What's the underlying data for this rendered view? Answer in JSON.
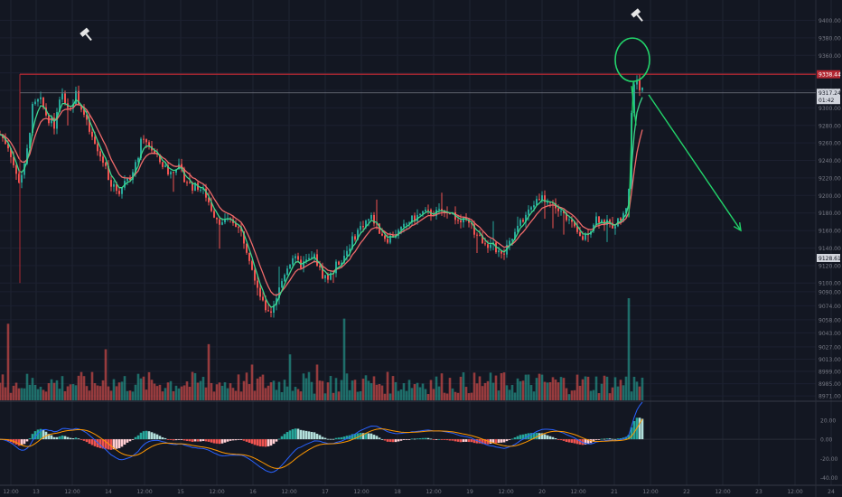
{
  "chart_data": {
    "type": "candlestick",
    "title": "",
    "price_axis": {
      "ylim": [
        8965,
        9415
      ],
      "ticks": [
        "9400.00",
        "9380.00",
        "9360.00",
        "9340.00",
        "9320.00",
        "9300.00",
        "9280.00",
        "9260.00",
        "9240.00",
        "9220.00",
        "9200.00",
        "9180.00",
        "9160.00",
        "9140.00",
        "9120.00",
        "9100.00",
        "9090.00",
        "9074.00",
        "9058.00",
        "9043.00",
        "9027.00",
        "9013.00",
        "8999.00",
        "8985.00",
        "8971.00"
      ],
      "tick_values": [
        9400,
        9380,
        9360,
        9340,
        9320,
        9300,
        9280,
        9260,
        9240,
        9220,
        9200,
        9180,
        9160,
        9140,
        9120,
        9100,
        9090,
        9074,
        9058,
        9043,
        9027,
        9013,
        8999,
        8985,
        8971
      ],
      "tags": [
        {
          "label": "9338.44",
          "value": 9338.44,
          "color": "#b22833"
        },
        {
          "label": "9317.24",
          "value": 9317.24,
          "color": "#d1d4dc"
        },
        {
          "label": "01:42",
          "value": 9309,
          "color": "#d1d4dc"
        },
        {
          "label": "9128.61",
          "value": 9128.61,
          "color": "#d1d4dc"
        }
      ]
    },
    "time_axis": {
      "ticks": [
        "12:00",
        "13",
        "12:00",
        "14",
        "12:00",
        "15",
        "12:00",
        "16",
        "12:00",
        "17",
        "12:00",
        "18",
        "12:00",
        "19",
        "12:00",
        "20",
        "12:00",
        "21",
        "12:00",
        "22",
        "12:00",
        "23",
        "12:00",
        "24"
      ],
      "positions": [
        6,
        20,
        40,
        60,
        80,
        100,
        120,
        140,
        160,
        180,
        200,
        220,
        240,
        260,
        280,
        300,
        320,
        340,
        360,
        380,
        400,
        420,
        440,
        460
      ]
    },
    "x_range": [
      0,
      470
    ],
    "levels": [
      {
        "value": 9338.44,
        "color": "#b22833"
      },
      {
        "value": 9317.24,
        "color": "#787b86"
      }
    ],
    "ohlc_keyframes": [
      [
        0,
        9270
      ],
      [
        5,
        9255
      ],
      [
        10,
        9215
      ],
      [
        14,
        9235
      ],
      [
        18,
        9300
      ],
      [
        22,
        9310
      ],
      [
        26,
        9290
      ],
      [
        30,
        9280
      ],
      [
        34,
        9315
      ],
      [
        38,
        9300
      ],
      [
        42,
        9315
      ],
      [
        46,
        9295
      ],
      [
        50,
        9270
      ],
      [
        54,
        9250
      ],
      [
        58,
        9235
      ],
      [
        62,
        9210
      ],
      [
        66,
        9205
      ],
      [
        70,
        9220
      ],
      [
        74,
        9225
      ],
      [
        78,
        9260
      ],
      [
        82,
        9260
      ],
      [
        86,
        9245
      ],
      [
        90,
        9235
      ],
      [
        94,
        9225
      ],
      [
        98,
        9235
      ],
      [
        102,
        9220
      ],
      [
        106,
        9210
      ],
      [
        110,
        9210
      ],
      [
        114,
        9200
      ],
      [
        118,
        9180
      ],
      [
        122,
        9170
      ],
      [
        126,
        9170
      ],
      [
        130,
        9170
      ],
      [
        134,
        9155
      ],
      [
        138,
        9130
      ],
      [
        142,
        9100
      ],
      [
        146,
        9072
      ],
      [
        150,
        9068
      ],
      [
        154,
        9090
      ],
      [
        158,
        9115
      ],
      [
        162,
        9130
      ],
      [
        166,
        9120
      ],
      [
        170,
        9125
      ],
      [
        174,
        9130
      ],
      [
        178,
        9110
      ],
      [
        182,
        9105
      ],
      [
        186,
        9120
      ],
      [
        190,
        9130
      ],
      [
        194,
        9145
      ],
      [
        198,
        9160
      ],
      [
        202,
        9170
      ],
      [
        206,
        9175
      ],
      [
        210,
        9160
      ],
      [
        214,
        9150
      ],
      [
        218,
        9155
      ],
      [
        222,
        9160
      ],
      [
        226,
        9170
      ],
      [
        230,
        9175
      ],
      [
        234,
        9180
      ],
      [
        238,
        9180
      ],
      [
        242,
        9180
      ],
      [
        246,
        9185
      ],
      [
        250,
        9180
      ],
      [
        254,
        9170
      ],
      [
        258,
        9170
      ],
      [
        262,
        9160
      ],
      [
        266,
        9150
      ],
      [
        270,
        9145
      ],
      [
        274,
        9140
      ],
      [
        278,
        9130
      ],
      [
        282,
        9145
      ],
      [
        286,
        9160
      ],
      [
        290,
        9175
      ],
      [
        294,
        9185
      ],
      [
        298,
        9200
      ],
      [
        302,
        9195
      ],
      [
        306,
        9190
      ],
      [
        310,
        9180
      ],
      [
        314,
        9175
      ],
      [
        318,
        9160
      ],
      [
        322,
        9150
      ],
      [
        326,
        9160
      ],
      [
        330,
        9175
      ],
      [
        334,
        9170
      ],
      [
        338,
        9165
      ],
      [
        342,
        9170
      ],
      [
        346,
        9180
      ],
      [
        348,
        9210
      ],
      [
        350,
        9320
      ],
      [
        352,
        9335
      ],
      [
        354,
        9325
      ],
      [
        356,
        9317
      ]
    ],
    "volume_axis": {
      "ylim": [
        0,
        1
      ]
    },
    "volume_spikes": [
      [
        4,
        0.75
      ],
      [
        58,
        0.5
      ],
      [
        116,
        0.55
      ],
      [
        140,
        0.35
      ],
      [
        160,
        0.45
      ],
      [
        176,
        0.35
      ],
      [
        190,
        0.8
      ],
      [
        348,
        1.0
      ]
    ],
    "macd_axis": {
      "ylim": [
        -45,
        32
      ],
      "ticks": [
        "20.00",
        "0.00",
        "-20.00",
        "-40.00"
      ],
      "tick_values": [
        20,
        0,
        -20,
        -40
      ]
    },
    "annotations": [
      {
        "type": "hammer-icon",
        "x": 47,
        "value": 9386
      },
      {
        "type": "hammer-icon",
        "x": 352,
        "value": 9408
      },
      {
        "type": "circle",
        "x": 350,
        "value": 9355
      },
      {
        "type": "arrow",
        "from": [
          359,
          9315
        ],
        "to": [
          410,
          9160
        ]
      }
    ],
    "colors": {
      "bull": "#26a69a",
      "bear": "#ef5350",
      "ema_fast": "#3dd68c",
      "ema_slow": "#ef6a6a",
      "macd": "#2962ff",
      "signal": "#ff9800",
      "annotation": "#22d36a",
      "resistance": "#b22833"
    }
  }
}
